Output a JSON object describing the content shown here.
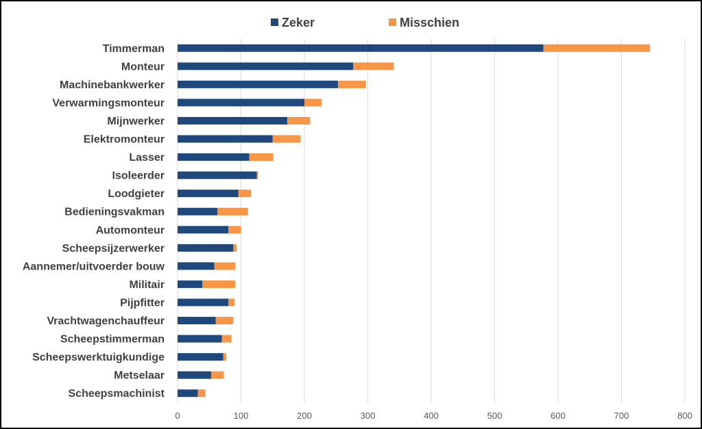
{
  "chart_data": {
    "type": "bar",
    "orientation": "horizontal",
    "stacked": true,
    "categories": [
      "Timmerman",
      "Monteur",
      "Machinebankwerker",
      "Verwarmingsmonteur",
      "Mijnwerker",
      "Elektromonteur",
      "Lasser",
      "Isoleerder",
      "Loodgieter",
      "Bedieningsvakman",
      "Automonteur",
      "Scheepsijzerwerker",
      "Aannemer/uitvoerder bouw",
      "Militair",
      "Pijpfitter",
      "Vrachtwagenchauffeur",
      "Scheepstimmerman",
      "Scheepswerktuigkundige",
      "Metselaar",
      "Scheepsmachinist"
    ],
    "series": [
      {
        "name": "Zeker",
        "color": "#1f497d",
        "values": [
          577,
          277,
          253,
          200,
          173,
          150,
          113,
          125,
          96,
          63,
          80,
          88,
          58,
          39,
          80,
          60,
          70,
          72,
          53,
          32
        ]
      },
      {
        "name": "Misschien",
        "color": "#f79646",
        "values": [
          168,
          64,
          44,
          27,
          36,
          44,
          38,
          2,
          20,
          48,
          20,
          5,
          33,
          52,
          10,
          28,
          15,
          5,
          20,
          12
        ]
      }
    ],
    "xlim": [
      0,
      800
    ],
    "xticks": [
      0,
      100,
      200,
      300,
      400,
      500,
      600,
      700,
      800
    ],
    "grid": true,
    "legend_position": "top-center",
    "title": "",
    "xlabel": "",
    "ylabel": ""
  }
}
